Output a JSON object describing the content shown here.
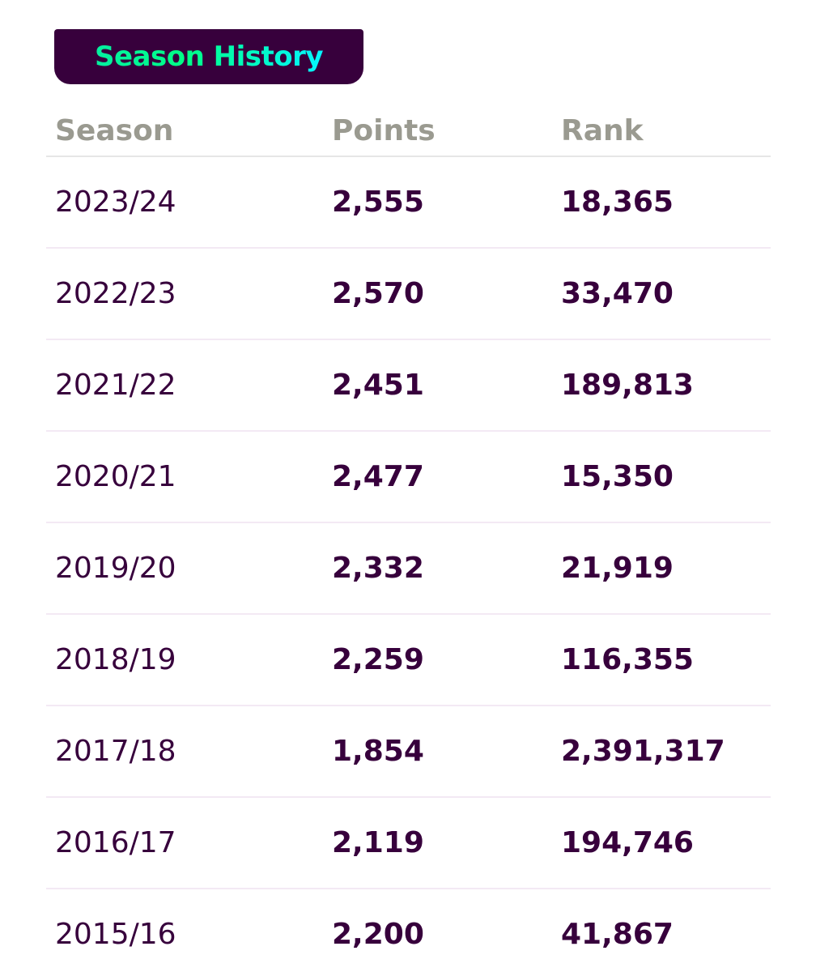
{
  "header": {
    "title": "Season History"
  },
  "table": {
    "columns": [
      "Season",
      "Points",
      "Rank"
    ],
    "rows": [
      {
        "season": "2023/24",
        "points": "2,555",
        "rank": "18,365"
      },
      {
        "season": "2022/23",
        "points": "2,570",
        "rank": "33,470"
      },
      {
        "season": "2021/22",
        "points": "2,451",
        "rank": "189,813"
      },
      {
        "season": "2020/21",
        "points": "2,477",
        "rank": "15,350"
      },
      {
        "season": "2019/20",
        "points": "2,332",
        "rank": "21,919"
      },
      {
        "season": "2018/19",
        "points": "2,259",
        "rank": "116,355"
      },
      {
        "season": "2017/18",
        "points": "1,854",
        "rank": "2,391,317"
      },
      {
        "season": "2016/17",
        "points": "2,119",
        "rank": "194,746"
      },
      {
        "season": "2015/16",
        "points": "2,200",
        "rank": "41,867"
      }
    ]
  },
  "colors": {
    "primary": "#37003c",
    "accent_start": "#05f0a0",
    "accent_end": "#04f5ff",
    "header_text": "#9a9a90"
  }
}
